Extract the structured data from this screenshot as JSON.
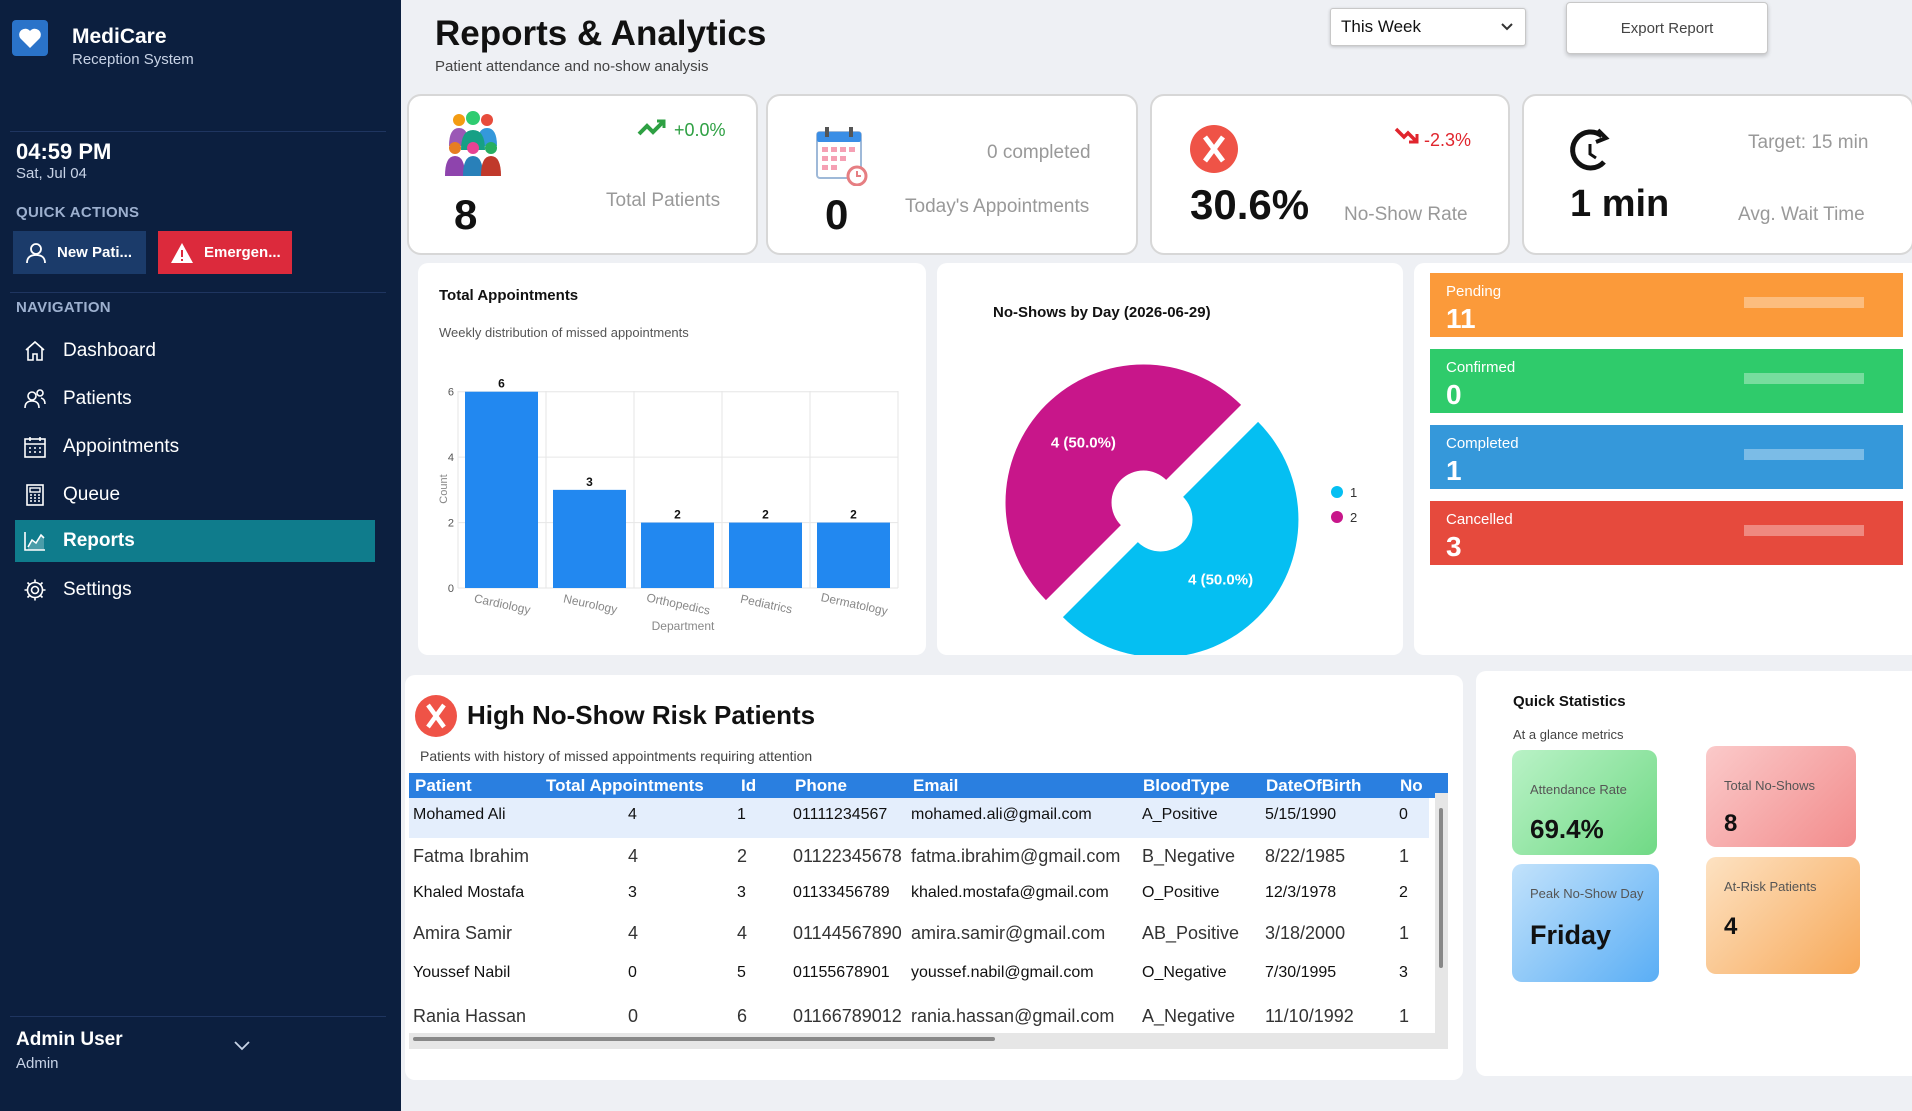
{
  "app": {
    "name": "MediCare",
    "subtitle": "Reception System"
  },
  "clock": {
    "time": "04:59 PM",
    "date": "Sat, Jul 04"
  },
  "quick_actions": {
    "title": "QUICK ACTIONS",
    "new_patient": "New Pati...",
    "emergency": "Emergen..."
  },
  "navigation": {
    "title": "NAVIGATION",
    "items": [
      {
        "label": "Dashboard",
        "icon": "home-icon"
      },
      {
        "label": "Patients",
        "icon": "users-icon"
      },
      {
        "label": "Appointments",
        "icon": "calendar-icon"
      },
      {
        "label": "Queue",
        "icon": "calculator-icon"
      },
      {
        "label": "Reports",
        "icon": "chart-icon",
        "active": true
      },
      {
        "label": "Settings",
        "icon": "gear-icon"
      }
    ]
  },
  "user": {
    "name": "Admin User",
    "role": "Admin"
  },
  "header": {
    "title": "Reports & Analytics",
    "subtitle": "Patient attendance and no-show analysis",
    "period": "This Week",
    "export_label": "Export Report"
  },
  "kpis": {
    "total_patients": {
      "value": "8",
      "label": "Total Patients",
      "trend": "+0.0%",
      "trend_color": "#2ea043"
    },
    "appointments": {
      "value": "0",
      "label": "Today's Appointments",
      "note": "0 completed"
    },
    "noshow": {
      "value": "30.6%",
      "label": "No-Show Rate",
      "trend": "-2.3%",
      "trend_color": "#e0252d"
    },
    "wait": {
      "value": "1 min",
      "label": "Avg. Wait Time",
      "target": "Target: 15 min"
    }
  },
  "bar_panel": {
    "title": "Total Appointments",
    "subtitle": "Weekly distribution of missed appointments"
  },
  "pie_panel": {
    "title": "No-Shows by Day (2026-06-29)"
  },
  "chart_data": [
    {
      "type": "bar",
      "categories": [
        "Cardiology",
        "Neurology",
        "Orthopedics",
        "Pediatrics",
        "Dermatology"
      ],
      "values": [
        6,
        3,
        2,
        2,
        2
      ],
      "xlabel": "Department",
      "ylabel": "Count",
      "ylim": [
        0,
        7
      ],
      "yticks": [
        0,
        2,
        4,
        6
      ],
      "color": "#2288f0",
      "grid": true
    },
    {
      "type": "pie",
      "labels": [
        "1",
        "2"
      ],
      "values": [
        4,
        4
      ],
      "slice_labels": [
        "4 (50.0%)",
        "4 (50.0%)"
      ],
      "colors": [
        "#05bff2",
        "#c8168a"
      ],
      "legend": "right"
    }
  ],
  "statuses": [
    {
      "label": "Pending",
      "value": "11",
      "color": "#fb9a3a"
    },
    {
      "label": "Confirmed",
      "value": "0",
      "color": "#2fcb6b"
    },
    {
      "label": "Completed",
      "value": "1",
      "color": "#3598da"
    },
    {
      "label": "Cancelled",
      "value": "3",
      "color": "#e64a3d"
    }
  ],
  "risk": {
    "title": "High No-Show Risk Patients",
    "subtitle": "Patients with history of missed appointments requiring attention",
    "columns": [
      "Patient",
      "Total Appointments",
      "Id",
      "Phone",
      "Email",
      "BloodType",
      "DateOfBirth",
      "No"
    ],
    "rows": [
      [
        "Mohamed Ali",
        "4",
        "1",
        "01111234567",
        "mohamed.ali@gmail.com",
        "A_Positive",
        "5/15/1990",
        "0"
      ],
      [
        "Fatma Ibrahim",
        "4",
        "2",
        "01122345678",
        "fatma.ibrahim@gmail.com",
        "B_Negative",
        "8/22/1985",
        "1"
      ],
      [
        "Khaled Mostafa",
        "3",
        "3",
        "01133456789",
        "khaled.mostafa@gmail.com",
        "O_Positive",
        "12/3/1978",
        "2"
      ],
      [
        "Amira Samir",
        "4",
        "4",
        "01144567890",
        "amira.samir@gmail.com",
        "AB_Positive",
        "3/18/2000",
        "1"
      ],
      [
        "Youssef Nabil",
        "0",
        "5",
        "01155678901",
        "youssef.nabil@gmail.com",
        "O_Negative",
        "7/30/1995",
        "3"
      ],
      [
        "Rania Hassan",
        "0",
        "6",
        "01166789012",
        "rania.hassan@gmail.com",
        "A_Negative",
        "11/10/1992",
        "1"
      ]
    ]
  },
  "quick_stats": {
    "title": "Quick Statistics",
    "subtitle": "At a glance metrics",
    "attendance": {
      "label": "Attendance Rate",
      "value": "69.4%"
    },
    "total_noshows": {
      "label": "Total No-Shows",
      "value": "8"
    },
    "peak_day": {
      "label": "Peak No-Show Day",
      "value": "Friday"
    },
    "at_risk": {
      "label": "At-Risk Patients",
      "value": "4"
    }
  }
}
